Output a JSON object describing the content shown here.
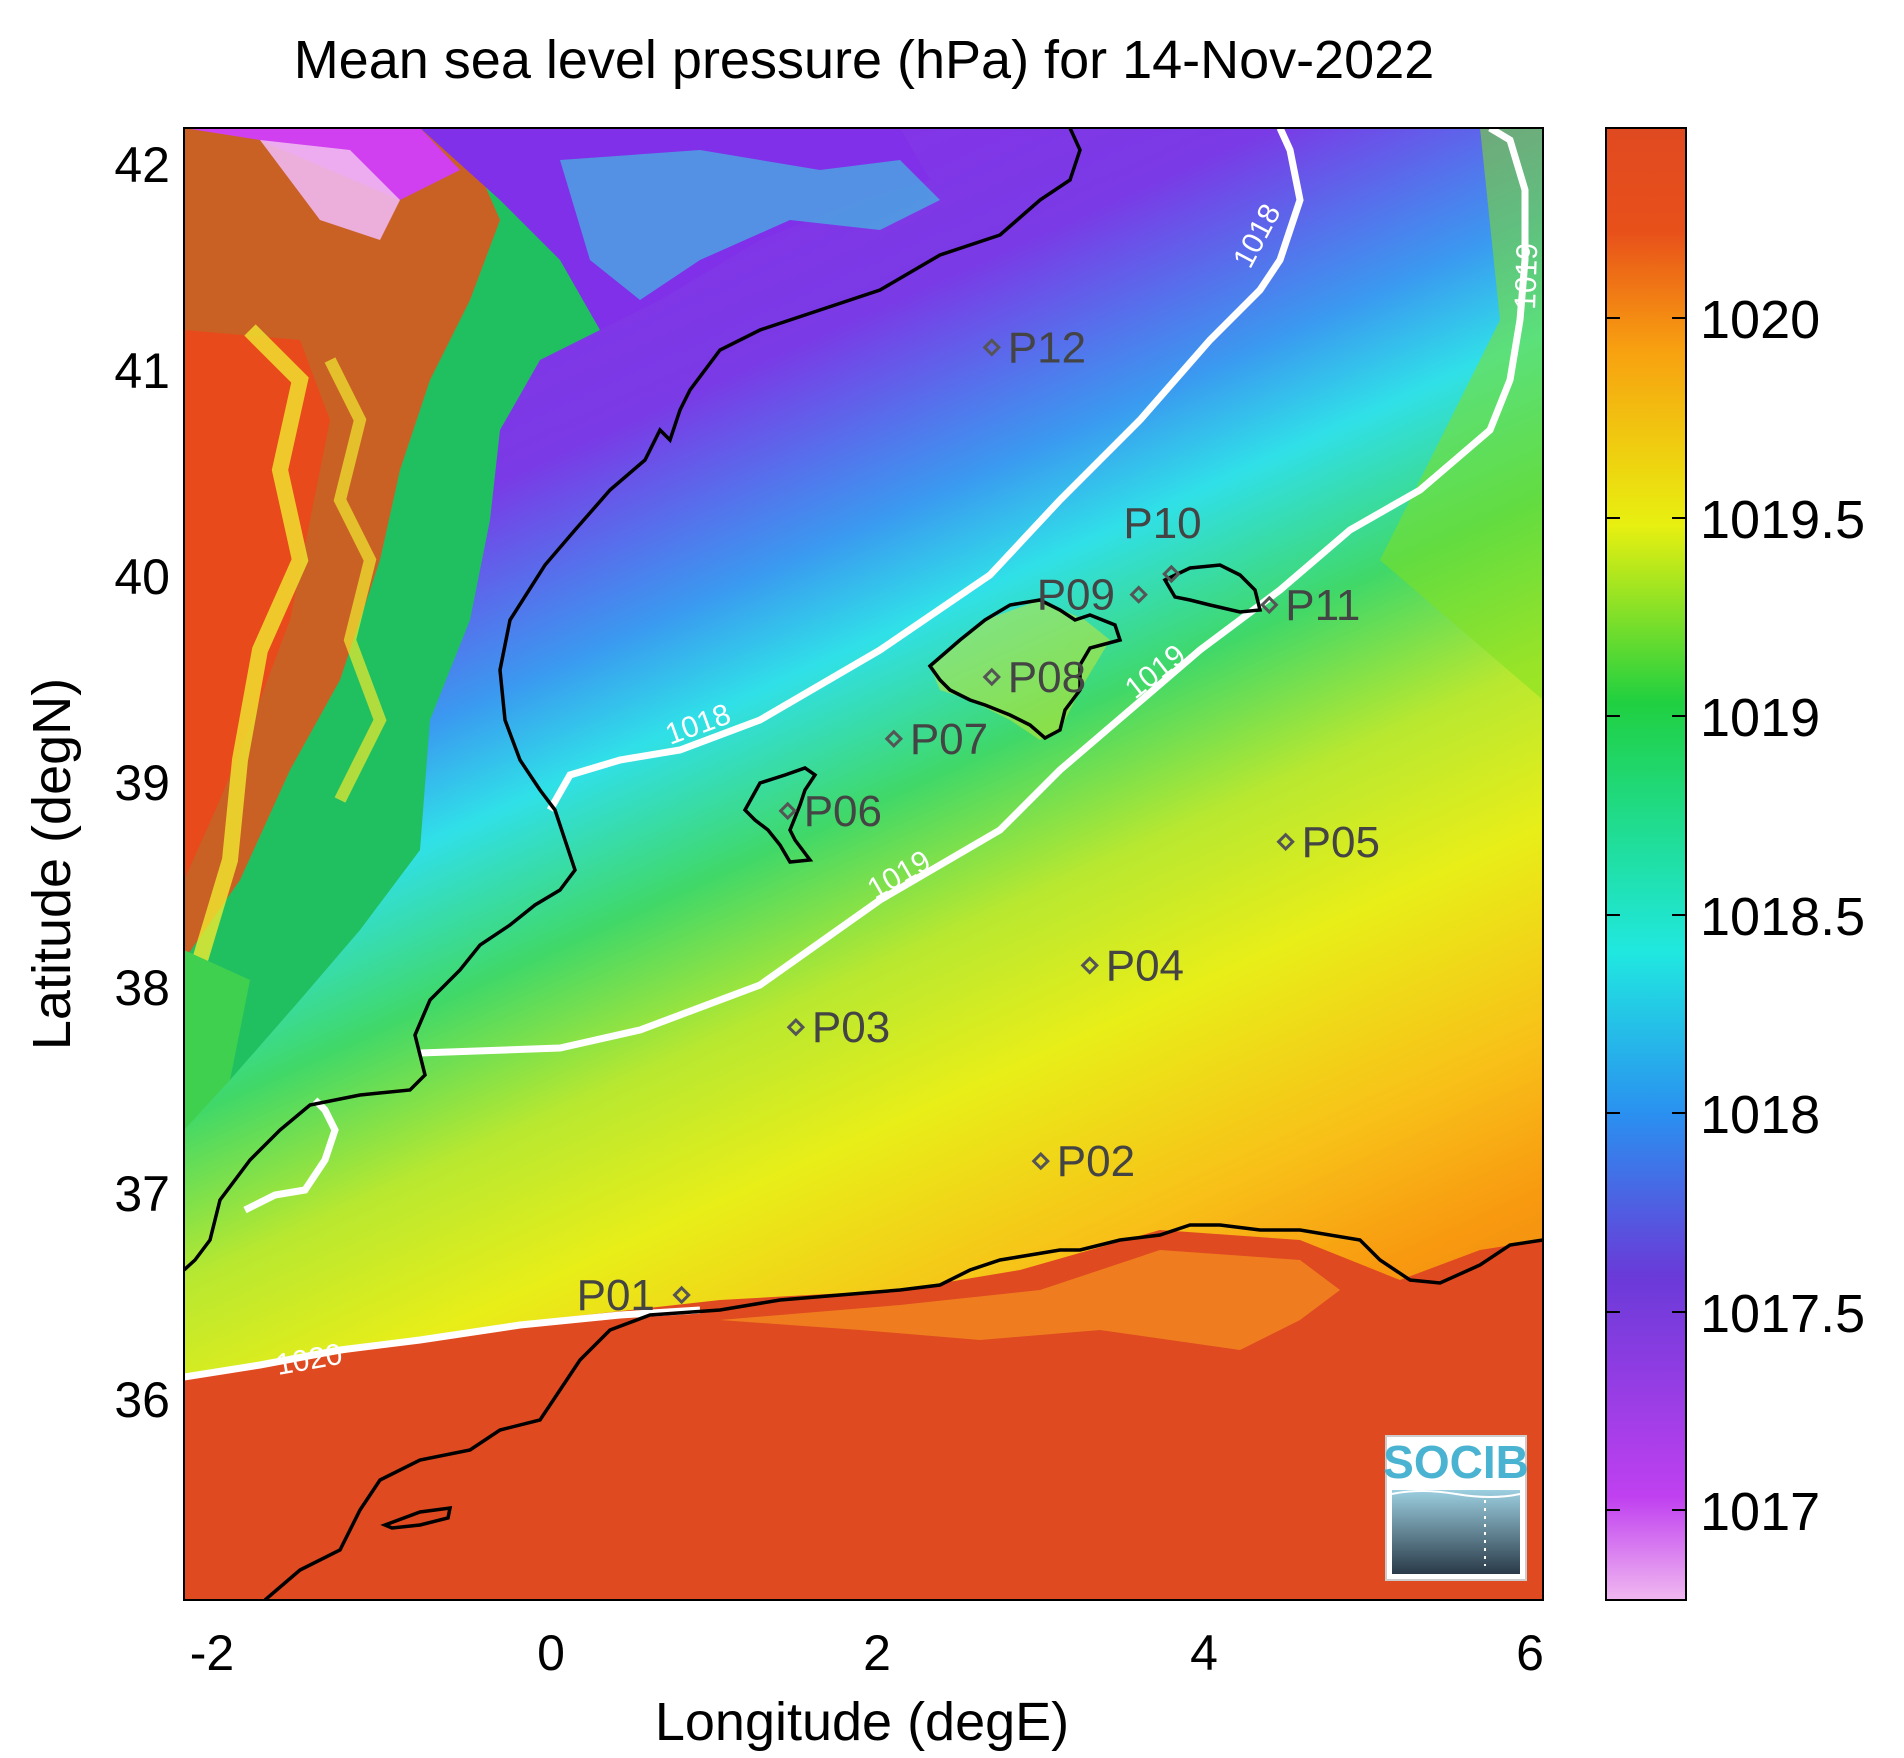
{
  "title": "Mean sea level pressure (hPa) for 14-Nov-2022",
  "xlabel": "Longitude (degE)",
  "ylabel": "Latitude (degN)",
  "x_ticks": [
    "-2",
    "0",
    "2",
    "4",
    "6"
  ],
  "y_ticks": [
    "42",
    "41",
    "40",
    "39",
    "38",
    "37",
    "36"
  ],
  "colorbar": {
    "ticks": [
      "1020",
      "1019.5",
      "1019",
      "1018.5",
      "1018",
      "1017.5",
      "1017"
    ],
    "colors": [
      "#f0b8f0",
      "#c040f0",
      "#6a3ad8",
      "#2a90f0",
      "#20e8e0",
      "#20d040",
      "#e8f010",
      "#f8a010",
      "#e8501a"
    ]
  },
  "contour_labels": {
    "c1018a": "1018",
    "c1018b": "1018",
    "c1019a": "1019",
    "c1019b": "1019",
    "c1019c": "1019",
    "c1020": "1020"
  },
  "stations": [
    {
      "id": "P01",
      "lon": 0.8,
      "lat": 36.5
    },
    {
      "id": "P02",
      "lon": 3.0,
      "lat": 37.15
    },
    {
      "id": "P03",
      "lon": 1.5,
      "lat": 37.8
    },
    {
      "id": "P04",
      "lon": 3.3,
      "lat": 38.1
    },
    {
      "id": "P05",
      "lon": 4.5,
      "lat": 38.7
    },
    {
      "id": "P06",
      "lon": 1.45,
      "lat": 38.85
    },
    {
      "id": "P07",
      "lon": 2.1,
      "lat": 39.2
    },
    {
      "id": "P08",
      "lon": 2.7,
      "lat": 39.5
    },
    {
      "id": "P09",
      "lon": 3.6,
      "lat": 39.9
    },
    {
      "id": "P10",
      "lon": 3.8,
      "lat": 40.0
    },
    {
      "id": "P11",
      "lon": 4.4,
      "lat": 39.85
    },
    {
      "id": "P12",
      "lon": 2.7,
      "lat": 41.1
    }
  ],
  "logo": {
    "text": "SOCIB"
  }
}
